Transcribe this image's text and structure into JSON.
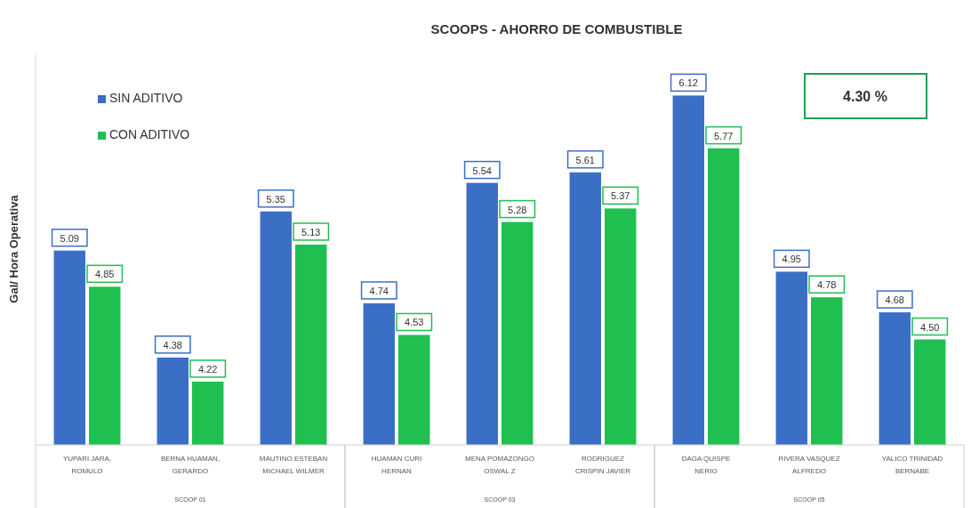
{
  "chart_data": {
    "type": "bar",
    "title": "SCOOPS - AHORRO DE COMBUSTIBLE",
    "ylabel": "Gal/ Hora Operativa",
    "categories": [
      "YUPARI JARA, ROMULO",
      "BERNA HUAMAN, GERARDO",
      "MAUTINO ESTEBAN MICHAEL WILMER",
      "HUAMAN CURI HERNAN",
      "MENA POMAZONGO OSWAL Z",
      "RODRIGUEZ CRISPIN JAVIER",
      "DAGA QUISPE NERIO",
      "RIVERA VASQUEZ ALFREDO",
      "YALICO TRINIDAD BERNABE"
    ],
    "series": [
      {
        "name": "SIN ADITIVO",
        "color": "#3b6fc6",
        "values": [
          5.09,
          4.38,
          5.35,
          4.74,
          5.54,
          5.61,
          6.12,
          4.95,
          4.68
        ],
        "value_labels": [
          "5.09",
          "4.38",
          "5.35",
          "4.74",
          "5.54",
          "5.61",
          "6.12",
          "4.95",
          "4.68"
        ]
      },
      {
        "name": "CON ADITIVO",
        "color": "#1fbf50",
        "values": [
          4.85,
          4.22,
          5.13,
          4.53,
          5.28,
          5.37,
          5.77,
          4.78,
          4.5
        ],
        "value_labels": [
          "4.85",
          "4.22",
          "5.13",
          "4.53",
          "5.28",
          "5.37",
          "5.77",
          "4.78",
          "4.50"
        ]
      }
    ],
    "ylim": [
      3.8,
      6.4
    ],
    "tick_labels": "x",
    "legend": "top left",
    "annotations": [
      "4.30 %",
      "SCOOP 01",
      "SCOOP 03",
      "SCOOP 05"
    ]
  }
}
